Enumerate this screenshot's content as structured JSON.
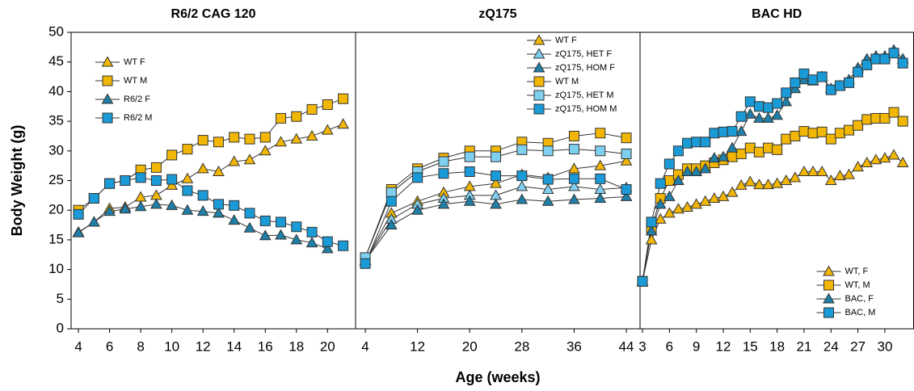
{
  "chart_data": [
    {
      "type": "line",
      "title": "R6/2 CAG 120",
      "ylabel": "Body Weight (g)",
      "legend": "upper-left",
      "x": [
        4,
        5,
        6,
        7,
        8,
        9,
        10,
        11,
        12,
        13,
        14,
        15,
        16,
        17,
        18,
        19,
        20,
        21
      ],
      "xlim": [
        3.53,
        21.8
      ],
      "xticks": [
        4,
        6,
        8,
        10,
        12,
        14,
        16,
        18,
        20
      ],
      "ylim": [
        0,
        50
      ],
      "yticks": [
        0,
        5,
        10,
        15,
        20,
        25,
        30,
        35,
        40,
        45,
        50
      ],
      "series": [
        {
          "name": "WT F",
          "color": "#f2b705",
          "marker": "triangle",
          "values": [
            16.3,
            18,
            20.3,
            20.5,
            22.2,
            22.5,
            24.2,
            25.3,
            27,
            26.5,
            28.2,
            28.5,
            30,
            31.5,
            32,
            32.5,
            33.5,
            34.5
          ]
        },
        {
          "name": "WT M",
          "color": "#f2b705",
          "marker": "square",
          "values": [
            20,
            22,
            24.5,
            25,
            26.8,
            27.2,
            29.3,
            30.3,
            31.8,
            31.5,
            32.3,
            32,
            32.3,
            35.5,
            35.8,
            37,
            37.8,
            38.8
          ]
        },
        {
          "name": "R6/2 F",
          "color": "#1f7fa8",
          "marker": "triangle",
          "values": [
            16.2,
            18,
            19.8,
            20.2,
            20.6,
            21,
            20.8,
            20,
            19.8,
            19.5,
            18.3,
            17,
            15.7,
            15.8,
            15,
            14.5,
            13.5,
            null
          ]
        },
        {
          "name": "R6/2 M",
          "color": "#1a9ad6",
          "marker": "square",
          "values": [
            19.3,
            22,
            24.5,
            25,
            25.5,
            25,
            25.2,
            23.3,
            22.5,
            21,
            20.8,
            19.5,
            18.2,
            18,
            17.2,
            16.3,
            14.7,
            14
          ]
        }
      ]
    },
    {
      "type": "line",
      "title": "zQ175",
      "xlabel": "Age (weeks)",
      "legend": "upper-right",
      "x": [
        4,
        8,
        12,
        16,
        20,
        24,
        28,
        32,
        36,
        40,
        44
      ],
      "xlim": [
        2.51,
        46.1
      ],
      "xticks": [
        4,
        12,
        20,
        28,
        36,
        44
      ],
      "ylim": [
        0,
        50
      ],
      "series": [
        {
          "name": "WT F",
          "color": "#f2b705",
          "marker": "triangle",
          "values": [
            11.5,
            19.5,
            21.5,
            23,
            24,
            24.5,
            26,
            25.5,
            27,
            27.5,
            28.3
          ]
        },
        {
          "name": "zQ175, HET F",
          "color": "#7fd0f0",
          "marker": "triangle",
          "values": [
            11.5,
            18.5,
            21,
            22,
            22.5,
            22.5,
            24,
            23.5,
            24,
            23.5,
            23.8
          ]
        },
        {
          "name": "zQ175, HOM F",
          "color": "#1f7fa8",
          "marker": "triangle",
          "values": [
            11.5,
            17.5,
            20,
            21,
            21.5,
            21,
            21.8,
            21.5,
            21.8,
            22,
            22.3
          ]
        },
        {
          "name": "WT M",
          "color": "#f2b705",
          "marker": "square",
          "values": [
            12,
            23.5,
            27,
            28.8,
            30,
            30,
            31.5,
            31.3,
            32.5,
            33,
            32.2
          ]
        },
        {
          "name": "zQ175, HET M",
          "color": "#7fd0f0",
          "marker": "square",
          "values": [
            12,
            23,
            26.5,
            28.2,
            29,
            29,
            30.2,
            30,
            30.3,
            30,
            29.5
          ]
        },
        {
          "name": "zQ175, HOM M",
          "color": "#1a9ad6",
          "marker": "square",
          "values": [
            11,
            21.5,
            25.5,
            26.2,
            26.5,
            25.8,
            25.8,
            25.2,
            25.3,
            25.3,
            23.5
          ]
        }
      ]
    },
    {
      "type": "line",
      "title": "BAC HD",
      "legend": "lower-right",
      "x": [
        3,
        4,
        5,
        6,
        7,
        8,
        9,
        10,
        11,
        12,
        13,
        14,
        15,
        16,
        17,
        18,
        19,
        20,
        21,
        22,
        23,
        24,
        25,
        26,
        27,
        28,
        29,
        30,
        31,
        32
      ],
      "xlim": [
        2.73,
        33.2
      ],
      "xticks": [
        3,
        6,
        9,
        12,
        15,
        18,
        21,
        24,
        27,
        30
      ],
      "ylim": [
        0,
        50
      ],
      "series": [
        {
          "name": "WT, F",
          "color": "#f2b705",
          "marker": "triangle",
          "values": [
            8,
            15,
            18.5,
            19.5,
            20.2,
            20.5,
            21,
            21.5,
            22,
            22.3,
            23,
            24.2,
            24.8,
            24.3,
            24.3,
            24.5,
            25,
            25.5,
            26.5,
            26.5,
            26.5,
            25,
            25.8,
            26,
            27.3,
            28,
            28.5,
            28.8,
            29.3,
            28
          ]
        },
        {
          "name": "WT, M",
          "color": "#f2b705",
          "marker": "square",
          "values": [
            8,
            17,
            22,
            25,
            26,
            27,
            27,
            27.5,
            28,
            28.5,
            29,
            29.5,
            30.5,
            29.8,
            30.5,
            30.2,
            32,
            32.5,
            33.3,
            33,
            33.2,
            32,
            33,
            33.5,
            34.3,
            35.3,
            35.5,
            35.5,
            36.5,
            35
          ]
        },
        {
          "name": "BAC, F",
          "color": "#1f7fa8",
          "marker": "triangle",
          "values": [
            8,
            16.5,
            21,
            22.3,
            25,
            26.5,
            26.5,
            27,
            28.8,
            29,
            30.5,
            33.3,
            36.2,
            35.5,
            35.5,
            36,
            38.3,
            40.5,
            42,
            41.8,
            42.5,
            40.5,
            41,
            42,
            44,
            45.5,
            46,
            46,
            47,
            45.5
          ]
        },
        {
          "name": "BAC, M",
          "color": "#1a9ad6",
          "marker": "square",
          "values": [
            8,
            18,
            24.5,
            27.8,
            30,
            31.3,
            31.5,
            31.5,
            33,
            33.2,
            33.3,
            35.8,
            38.3,
            37.5,
            37.3,
            38,
            39.8,
            41.5,
            43,
            42,
            42.5,
            40.3,
            41,
            41.5,
            43.3,
            44.5,
            45.5,
            45.5,
            46.5,
            44.8
          ]
        }
      ]
    }
  ]
}
